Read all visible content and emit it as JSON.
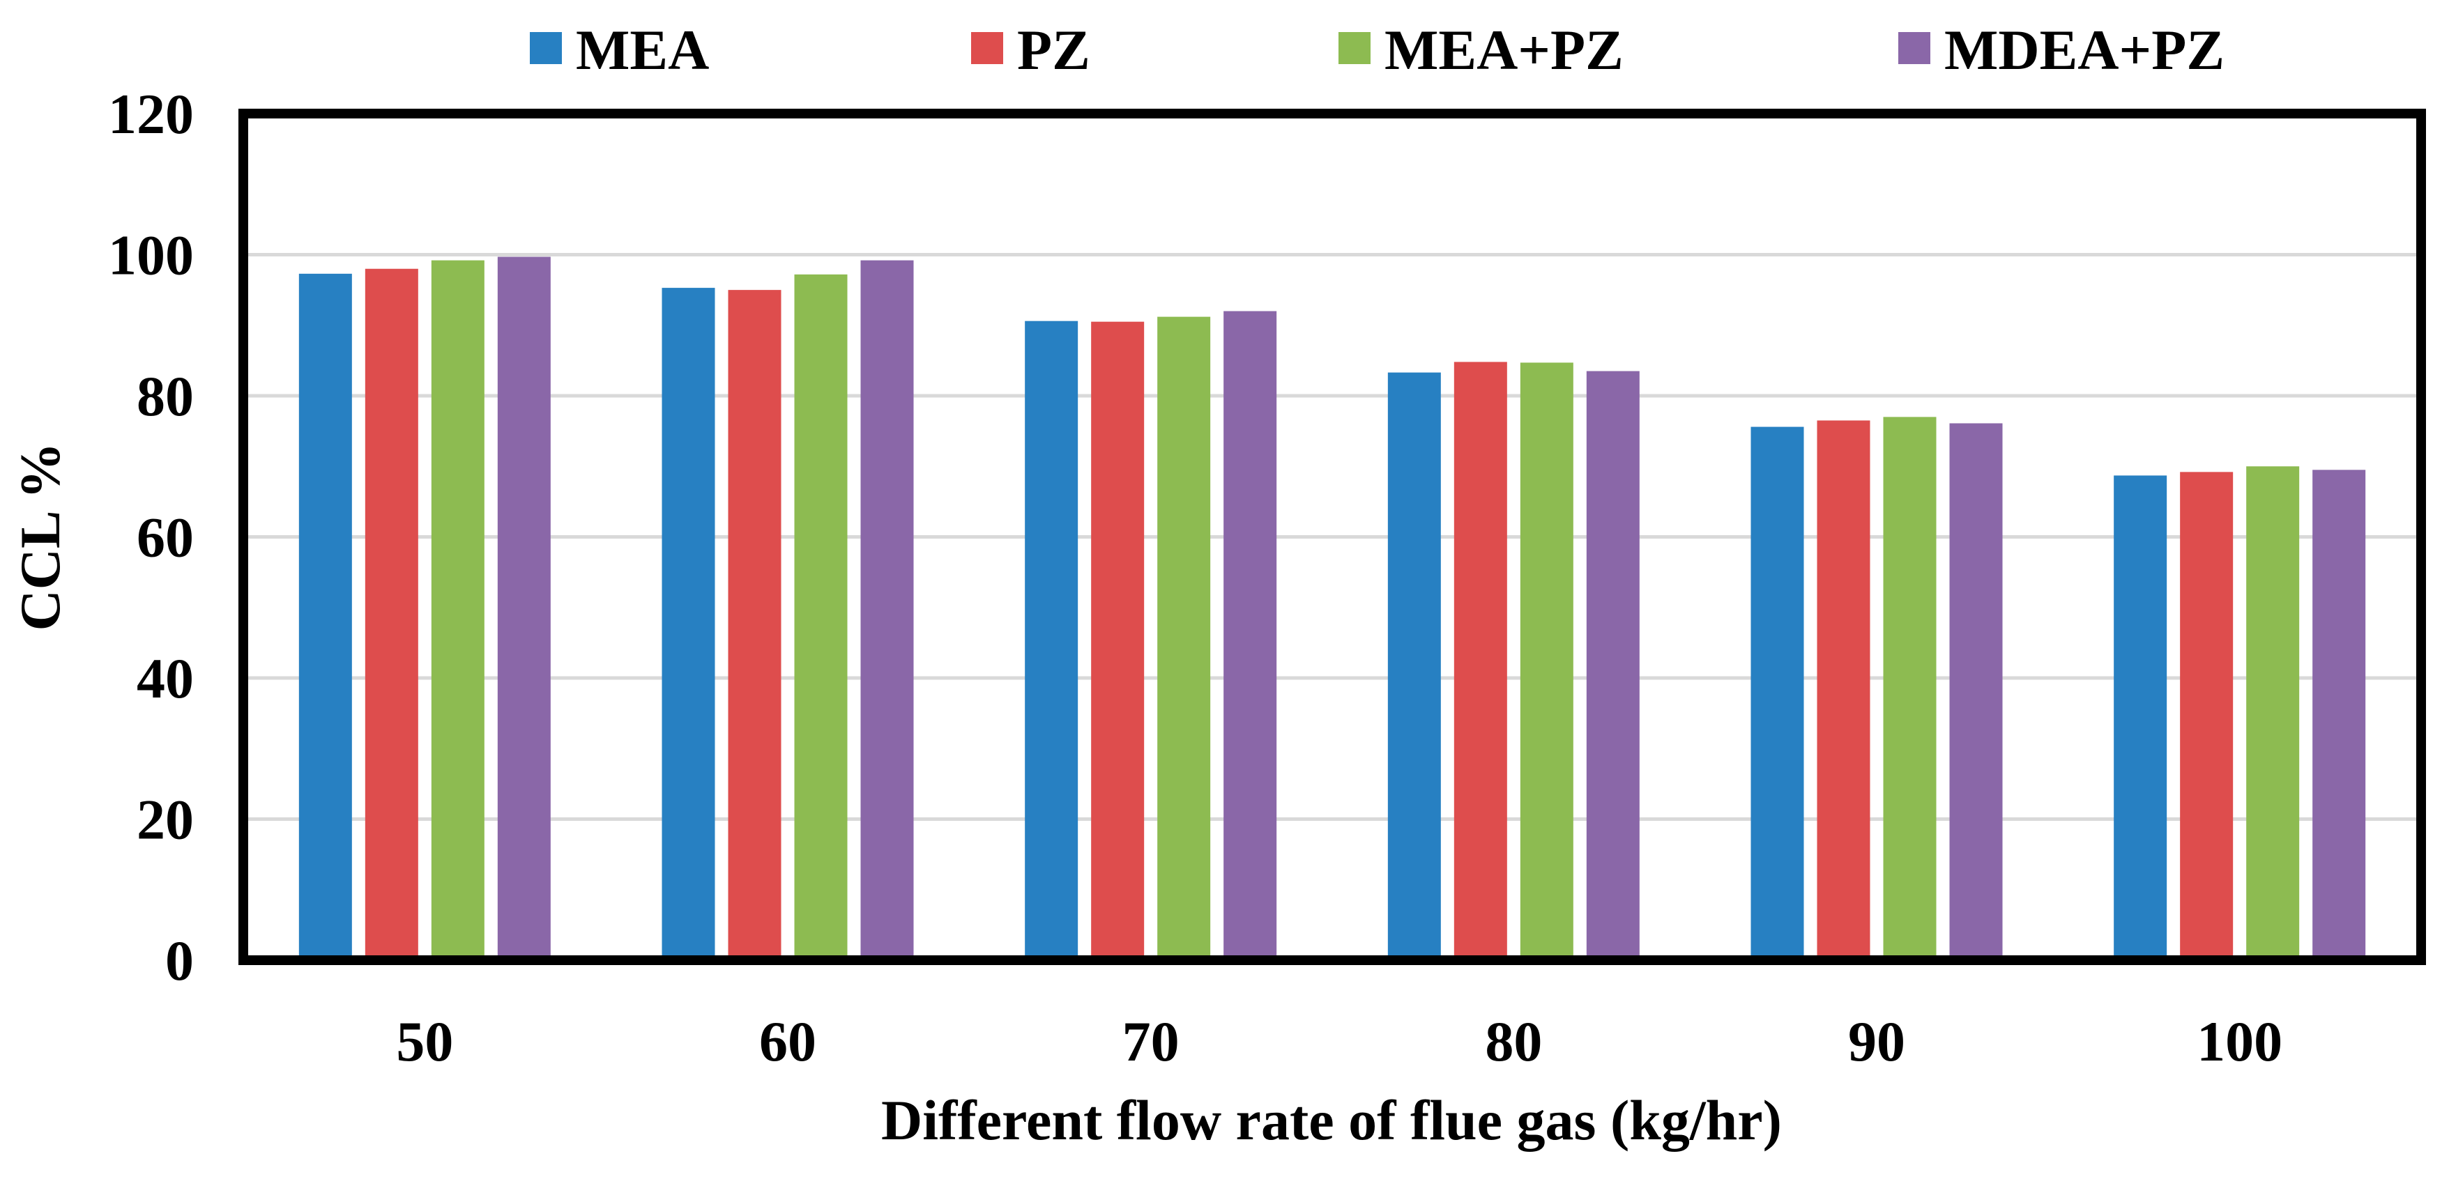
{
  "chart_data": {
    "type": "bar",
    "title": "",
    "xlabel": "Different flow rate of flue gas (kg/hr)",
    "ylabel": "CCL %",
    "categories": [
      "50",
      "60",
      "70",
      "80",
      "90",
      "100"
    ],
    "ylim": [
      0,
      120
    ],
    "yticks": [
      "0",
      "20",
      "40",
      "60",
      "80",
      "100",
      "120"
    ],
    "grid": true,
    "legend_position": "top",
    "series": [
      {
        "name": "MEA",
        "color": "#2780C2",
        "values": [
          97.3,
          95.3,
          90.6,
          83.3,
          75.6,
          68.7
        ]
      },
      {
        "name": "PZ",
        "color": "#DE4D4D",
        "values": [
          98.0,
          95.0,
          90.5,
          84.8,
          76.5,
          69.2
        ]
      },
      {
        "name": "MEA+PZ",
        "color": "#8DBB51",
        "values": [
          99.2,
          97.2,
          91.2,
          84.7,
          77.0,
          70.0
        ]
      },
      {
        "name": "MDEA+PZ",
        "color": "#8A67A8",
        "values": [
          99.7,
          99.2,
          92.0,
          83.5,
          76.1,
          69.5
        ]
      }
    ]
  }
}
